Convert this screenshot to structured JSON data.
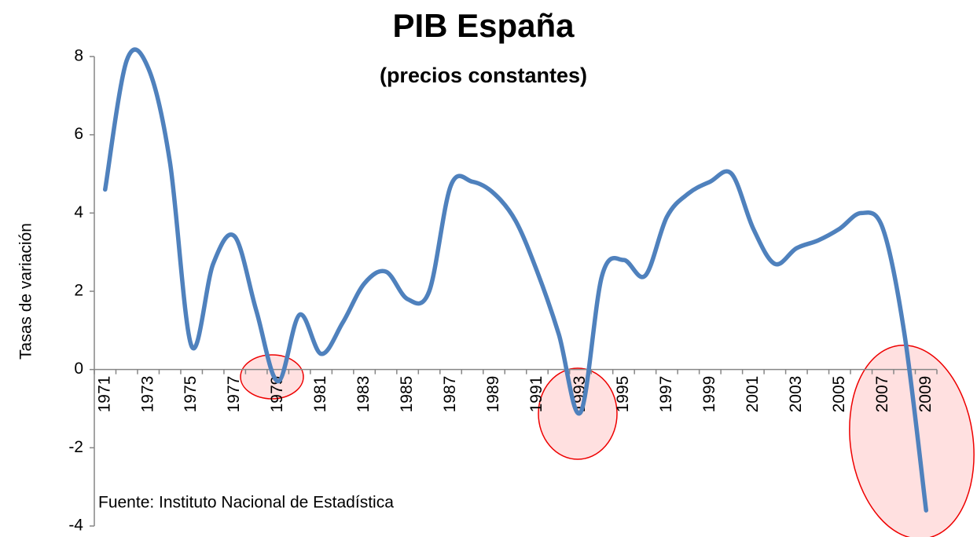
{
  "chart_data": {
    "type": "line",
    "title": "PIB España",
    "subtitle": "(precios constantes)",
    "y_label": "Tasas de variación",
    "annotation": "Fuente: Instituto  Nacional de Estadística",
    "categories": [
      "1971",
      null,
      "1973",
      null,
      "1975",
      null,
      "1977",
      null,
      "1979",
      null,
      "1981",
      null,
      "1983",
      null,
      "1985",
      null,
      "1987",
      null,
      "1989",
      null,
      "1991",
      null,
      "1993",
      null,
      "1995",
      null,
      "1997",
      null,
      "1999",
      null,
      "2001",
      null,
      "2003",
      null,
      "2005",
      null,
      "2007",
      null,
      "2009"
    ],
    "values": [
      4.6,
      7.9,
      7.7,
      5.3,
      0.6,
      2.7,
      3.4,
      1.5,
      -0.3,
      1.4,
      0.4,
      1.2,
      2.2,
      2.5,
      1.8,
      2.0,
      4.7,
      4.8,
      4.5,
      3.8,
      2.5,
      0.9,
      -1.1,
      2.4,
      2.8,
      2.4,
      3.9,
      4.5,
      4.8,
      5.0,
      3.6,
      2.7,
      3.1,
      3.3,
      3.6,
      4.0,
      3.6,
      0.9,
      -3.6
    ],
    "color": "#4f81bd",
    "ylim": [
      -4,
      8
    ],
    "yticks": [
      -4,
      -2,
      0,
      2,
      4,
      6,
      8
    ],
    "grid": false
  }
}
